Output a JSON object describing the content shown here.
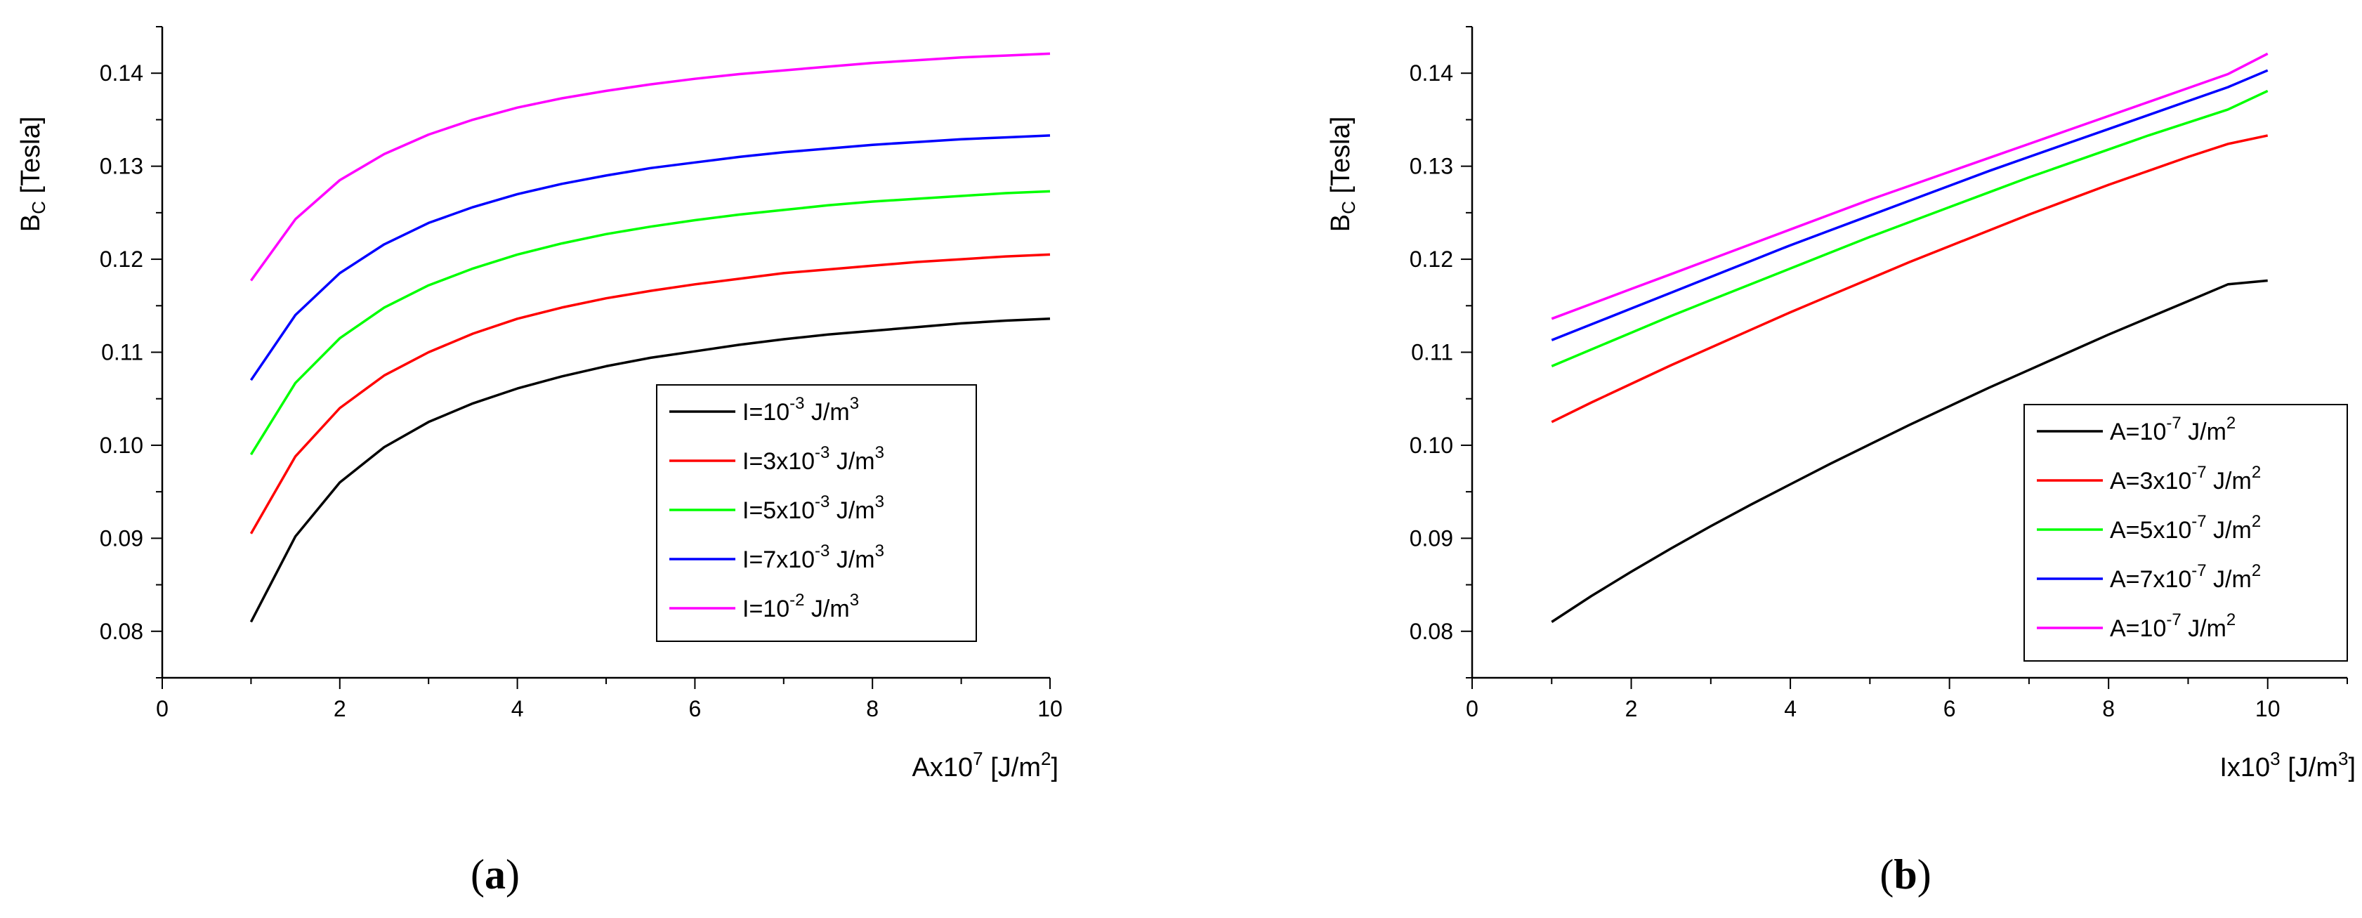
{
  "chart_data": [
    {
      "type": "line",
      "panel": "a",
      "caption_letter": "a",
      "x": [
        1,
        1.5,
        2,
        2.5,
        3,
        3.5,
        4,
        4.5,
        5,
        5.5,
        6,
        6.5,
        7,
        7.5,
        8,
        8.5,
        9,
        9.5,
        10
      ],
      "xlim": [
        0,
        10
      ],
      "ylim": [
        0.075,
        0.145
      ],
      "xticks": [
        "0",
        "2",
        "4",
        "6",
        "8",
        "10"
      ],
      "yticks": [
        "0.08",
        "0.09",
        "0.10",
        "0.11",
        "0.12",
        "0.13",
        "0.14"
      ],
      "xlabel": {
        "base": "Ax10",
        "sup1": "7",
        "mid": "  [J/m",
        "sup2": "2",
        "end": "]"
      },
      "ylabel": {
        "base": "B",
        "sub": "C",
        "rest": " [Tesla]"
      },
      "legend_position": "bottom-right",
      "series": [
        {
          "name": "I=10-3 J/m3",
          "label": {
            "a": "I=10",
            "b": "-3",
            "c": " J/m",
            "d": "3"
          },
          "color": "#000000",
          "values": [
            0.081,
            0.0902,
            0.096,
            0.0998,
            0.1025,
            0.1045,
            0.1061,
            0.1074,
            0.1085,
            0.1094,
            0.1101,
            0.1108,
            0.1114,
            0.1119,
            0.1123,
            0.1127,
            0.1131,
            0.1134,
            0.1136
          ]
        },
        {
          "name": "I=3x10-3 J/m3",
          "label": {
            "a": "I=3x10",
            "b": "-3",
            "c": " J/m",
            "d": "3"
          },
          "color": "#ff0000",
          "values": [
            0.0905,
            0.0988,
            0.104,
            0.1075,
            0.11,
            0.112,
            0.1136,
            0.1148,
            0.1158,
            0.1166,
            0.1173,
            0.1179,
            0.1185,
            0.1189,
            0.1193,
            0.1197,
            0.12,
            0.1203,
            0.1205
          ]
        },
        {
          "name": "I=5x10-3 J/m3",
          "label": {
            "a": "I=5x10",
            "b": "-3",
            "c": " J/m",
            "d": "3"
          },
          "color": "#00ff00",
          "values": [
            0.099,
            0.1067,
            0.1115,
            0.1148,
            0.1172,
            0.119,
            0.1205,
            0.1217,
            0.1227,
            0.1235,
            0.1242,
            0.1248,
            0.1253,
            0.1258,
            0.1262,
            0.1265,
            0.1268,
            0.1271,
            0.1273
          ]
        },
        {
          "name": "I=7x10-3 J/m3",
          "label": {
            "a": "I=7x10",
            "b": "-3",
            "c": " J/m",
            "d": "3"
          },
          "color": "#0000ff",
          "values": [
            0.107,
            0.114,
            0.1185,
            0.1216,
            0.1239,
            0.1256,
            0.127,
            0.1281,
            0.129,
            0.1298,
            0.1304,
            0.131,
            0.1315,
            0.1319,
            0.1323,
            0.1326,
            0.1329,
            0.1331,
            0.1333
          ]
        },
        {
          "name": "I=10-2 J/m3",
          "label": {
            "a": "I=10",
            "b": "-2",
            "c": " J/m",
            "d": "3"
          },
          "color": "#ff00ff",
          "values": [
            0.1177,
            0.1243,
            0.1285,
            0.1313,
            0.1334,
            0.135,
            0.1363,
            0.1373,
            0.1381,
            0.1388,
            0.1394,
            0.1399,
            0.1403,
            0.1407,
            0.1411,
            0.1414,
            0.1417,
            0.1419,
            0.1421
          ]
        }
      ]
    },
    {
      "type": "line",
      "panel": "b",
      "caption_letter": "b",
      "x": [
        1,
        1.5,
        2,
        2.5,
        3,
        3.5,
        4,
        4.5,
        5,
        5.5,
        6,
        6.5,
        7,
        7.5,
        8,
        8.5,
        9,
        9.5,
        10
      ],
      "xlim": [
        0,
        11
      ],
      "ylim": [
        0.075,
        0.145
      ],
      "xticks": [
        "0",
        "2",
        "4",
        "6",
        "8",
        "10"
      ],
      "yticks": [
        "0.08",
        "0.09",
        "0.10",
        "0.11",
        "0.12",
        "0.13",
        "0.14"
      ],
      "xlabel": {
        "base": "Ix10",
        "sup1": "3",
        "mid": " [J/m",
        "sup2": "3",
        "end": "]"
      },
      "ylabel": {
        "base": "B",
        "sub": "C",
        "rest": " [Tesla]"
      },
      "legend_position": "bottom-right",
      "series": [
        {
          "name": "A=10-7 J/m2",
          "label": {
            "a": "A=10",
            "b": "-7",
            "c": " J/m",
            "d": "2"
          },
          "color": "#000000",
          "values": [
            0.081,
            0.0838,
            0.0864,
            0.0889,
            0.0913,
            0.0936,
            0.0958,
            0.098,
            0.1001,
            0.1022,
            0.1042,
            0.1062,
            0.1081,
            0.11,
            0.1119,
            0.1137,
            0.1155,
            0.1173,
            0.1177
          ]
        },
        {
          "name": "A=3x10-7 J/m2",
          "label": {
            "a": "A=3x10",
            "b": "-7",
            "c": " J/m",
            "d": "2"
          },
          "color": "#ff0000",
          "values": [
            0.1025,
            0.1046,
            0.1066,
            0.1086,
            0.1105,
            0.1124,
            0.1143,
            0.1161,
            0.1179,
            0.1197,
            0.1214,
            0.1231,
            0.1248,
            0.1264,
            0.128,
            0.1295,
            0.131,
            0.1324,
            0.1333
          ]
        },
        {
          "name": "A=5x10-7 J/m2",
          "label": {
            "a": "A=5x10",
            "b": "-7",
            "c": " J/m",
            "d": "2"
          },
          "color": "#00ff00",
          "values": [
            0.1085,
            0.1103,
            0.1121,
            0.1139,
            0.1156,
            0.1173,
            0.119,
            0.1207,
            0.1224,
            0.124,
            0.1256,
            0.1272,
            0.1288,
            0.1303,
            0.1318,
            0.1333,
            0.1347,
            0.1361,
            0.1381
          ]
        },
        {
          "name": "A=7x10-7 J/m2",
          "label": {
            "a": "A=7x10",
            "b": "-7",
            "c": " J/m",
            "d": "2"
          },
          "color": "#0000ff",
          "values": [
            0.1113,
            0.113,
            0.1147,
            0.1164,
            0.1181,
            0.1198,
            0.1215,
            0.1231,
            0.1247,
            0.1263,
            0.1279,
            0.1295,
            0.131,
            0.1325,
            0.134,
            0.1355,
            0.137,
            0.1385,
            0.1403
          ]
        },
        {
          "name": "A=10-7 J/m2",
          "label": {
            "a": "A=10",
            "b": "-7",
            "c": " J/m",
            "d": "2"
          },
          "color": "#ff00ff",
          "values": [
            0.1136,
            0.1152,
            0.1168,
            0.1184,
            0.12,
            0.1216,
            0.1232,
            0.1248,
            0.1264,
            0.1279,
            0.1294,
            0.1309,
            0.1324,
            0.1339,
            0.1354,
            0.1369,
            0.1384,
            0.1399,
            0.1421
          ]
        }
      ]
    }
  ]
}
